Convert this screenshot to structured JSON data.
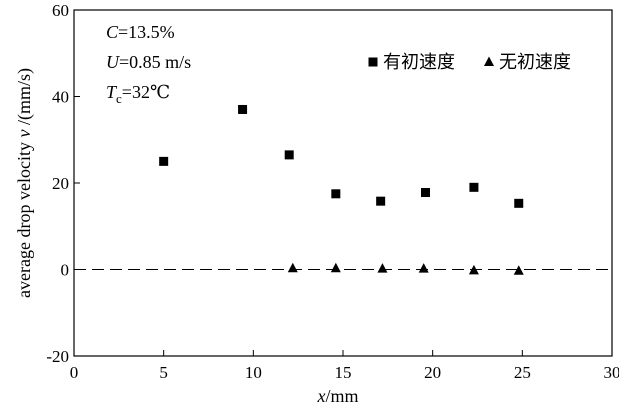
{
  "chart_data": {
    "type": "scatter",
    "xlabel": {
      "var": "x",
      "unit": "/mm"
    },
    "ylabel": {
      "text": "average drop velocity ",
      "var": "v",
      "unit": " /(mm/s)"
    },
    "xlim": [
      0,
      30
    ],
    "ylim": [
      -20,
      60
    ],
    "xticks": [
      0,
      5,
      10,
      15,
      20,
      25,
      30
    ],
    "yticks": [
      -20,
      0,
      20,
      40,
      60
    ],
    "grid": false,
    "legend_placement": "top-right",
    "reference_line": {
      "y": 0,
      "style": "dashed"
    },
    "annotations": [
      {
        "var": "C",
        "rest": "=13.5%"
      },
      {
        "var": "U",
        "rest": "=0.85 m/s"
      },
      {
        "var": "T",
        "sub": "c",
        "rest": "=32℃"
      }
    ],
    "series": [
      {
        "name": "有初速度",
        "marker": "square",
        "x": [
          5.0,
          9.4,
          12.0,
          14.6,
          17.1,
          19.6,
          22.3,
          24.8
        ],
        "y": [
          25.0,
          37.0,
          26.5,
          17.5,
          15.8,
          17.8,
          19.0,
          15.3
        ]
      },
      {
        "name": "无初速度",
        "marker": "triangle",
        "x": [
          12.2,
          14.6,
          17.2,
          19.5,
          22.3,
          24.8
        ],
        "y": [
          0.3,
          0.3,
          0.2,
          0.2,
          -0.2,
          -0.3
        ]
      }
    ]
  }
}
